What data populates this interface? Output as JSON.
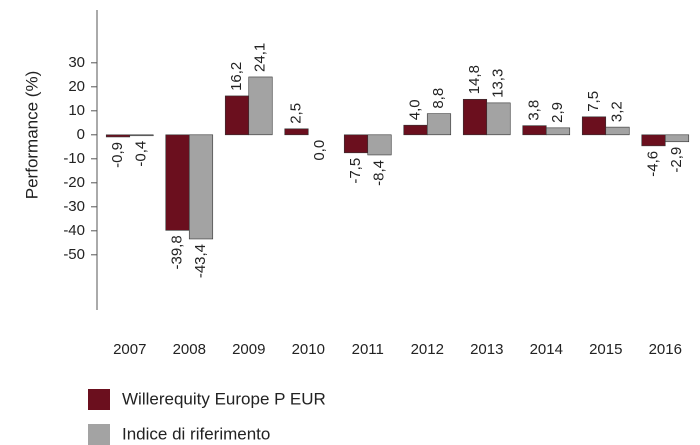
{
  "chart_data": {
    "type": "bar",
    "y_label": "Performance (%)",
    "categories": [
      "2007",
      "2008",
      "2009",
      "2010",
      "2011",
      "2012",
      "2013",
      "2014",
      "2015",
      "2016"
    ],
    "series": [
      {
        "name": "Willerequity Europe P  EUR",
        "color": "#6b0f1e",
        "values": [
          -0.9,
          -39.8,
          16.2,
          2.5,
          -7.5,
          4.0,
          14.8,
          3.8,
          7.5,
          -4.6
        ],
        "value_labels": [
          "-0,9",
          "-39,8",
          "16,2",
          "2,5",
          "-7,5",
          "4,0",
          "14,8",
          "3,8",
          "7,5",
          "-4,6"
        ]
      },
      {
        "name": "Indice di riferimento",
        "color": "#a3a3a3",
        "values": [
          -0.4,
          -43.4,
          24.1,
          0.0,
          -8.4,
          8.8,
          13.3,
          2.9,
          3.2,
          -2.9
        ],
        "value_labels": [
          "-0,4",
          "-43,4",
          "24,1",
          "0,0",
          "-8,4",
          "8,8",
          "13,3",
          "2,9",
          "3,2",
          "-2,9"
        ]
      }
    ],
    "ylim": [
      -73,
      52
    ],
    "yticks": [
      30,
      20,
      10,
      0,
      -10,
      -20,
      -30,
      -40,
      -50
    ]
  }
}
